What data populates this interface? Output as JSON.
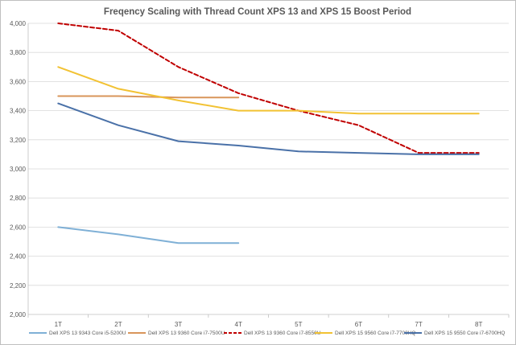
{
  "chart_data": {
    "type": "line",
    "title": "Freqency Scaling with Thread Count XPS 13 and XPS 15 Boost Period",
    "xlabel": "",
    "ylabel": "",
    "categories": [
      "1T",
      "2T",
      "3T",
      "4T",
      "5T",
      "6T",
      "7T",
      "8T"
    ],
    "ylim": [
      2000,
      4000
    ],
    "ytick_step": 200,
    "ytick_labels": [
      "2,000",
      "2,200",
      "2,400",
      "2,600",
      "2,800",
      "3,000",
      "3,200",
      "3,400",
      "3,600",
      "3,800",
      "4,000"
    ],
    "grid": true,
    "legend_position": "bottom",
    "series": [
      {
        "name": "Dell XPS 13 9343 Core i5-5200U",
        "color": "#7fb0d6",
        "dash": "solid",
        "values": [
          2600,
          2550,
          2490,
          2490,
          null,
          null,
          null,
          null
        ]
      },
      {
        "name": "Dell XPS 13 9360 Core i7-7500U",
        "color": "#d9955a",
        "dash": "solid",
        "values": [
          3500,
          3500,
          3490,
          3490,
          null,
          null,
          null,
          null
        ]
      },
      {
        "name": "Dell XPS 13 9360 Core i7-8550U",
        "color": "#c00000",
        "dash": "dashed",
        "values": [
          4000,
          3950,
          3700,
          3520,
          3400,
          3300,
          3110,
          3110
        ]
      },
      {
        "name": "Dell XPS 15 9560 Core i7-7700HQ",
        "color": "#f2c233",
        "dash": "solid",
        "values": [
          3700,
          3550,
          3470,
          3400,
          3400,
          3380,
          3380,
          3380
        ]
      },
      {
        "name": "Dell XPS 15 9550 Core i7-6700HQ",
        "color": "#4a71a8",
        "dash": "solid",
        "values": [
          3450,
          3300,
          3190,
          3160,
          3120,
          3110,
          3100,
          3100
        ]
      }
    ]
  }
}
